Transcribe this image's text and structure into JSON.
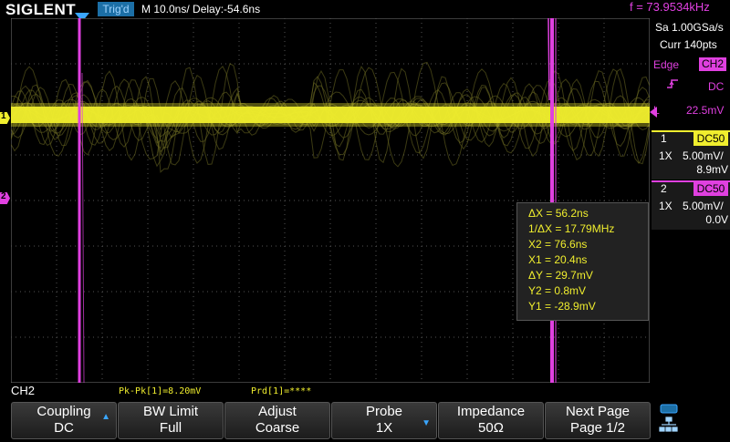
{
  "header": {
    "brand": "SIGLENT",
    "trigger_status": "Trig'd",
    "timebase": "M 10.0ns/  Delay:-54.6ns",
    "frequency": "f = 73.9534kHz"
  },
  "acquisition": {
    "sample_rate": "Sa 1.00GSa/s",
    "current_points": "Curr 140pts"
  },
  "trigger": {
    "type": "Edge",
    "source": "CH2",
    "coupling": "DC",
    "level_label": "L",
    "level": "22.5mV",
    "slope_icon": "rising-edge-icon"
  },
  "channels": [
    {
      "number": "1",
      "coupling_tag": "DC50",
      "probe": "1X",
      "scale": "5.00mV/",
      "offset": "8.9mV",
      "color": "#f0ee2e"
    },
    {
      "number": "2",
      "coupling_tag": "DC50",
      "probe": "1X",
      "scale": "5.00mV/",
      "offset": "0.0V",
      "color": "#e040e0"
    }
  ],
  "waveform_markers": {
    "ch1": "1",
    "ch2": "2"
  },
  "cursor_readout": [
    "ΔX = 56.2ns",
    "1/ΔX = 17.79MHz",
    "X2 = 76.6ns",
    "X1 = 20.4ns",
    "ΔY = 29.7mV",
    "Y2 = 0.8mV",
    "Y1 = -28.9mV"
  ],
  "status": {
    "menu_channel": "CH2",
    "pkpk": "Pk-Pk[1]=8.20mV",
    "prd": "Prd[1]=****"
  },
  "soft_menu": [
    {
      "line1": "Coupling",
      "line2": "DC",
      "arrow": "up"
    },
    {
      "line1": "BW Limit",
      "line2": "Full",
      "arrow": ""
    },
    {
      "line1": "Adjust",
      "line2": "Coarse",
      "arrow": ""
    },
    {
      "line1": "Probe",
      "line2": "1X",
      "arrow": "down"
    },
    {
      "line1": "Impedance",
      "line2": "50Ω",
      "arrow": ""
    },
    {
      "line1": "Next Page",
      "line2": "Page 1/2",
      "arrow": ""
    }
  ],
  "colors": {
    "ch1": "#f0ee2e",
    "ch2": "#e040e0",
    "grid": "#5a5a5a",
    "trigger_tag": "#1c6fa6"
  },
  "icons": {
    "status_top": "usb-icon",
    "status_bottom": "network-icon"
  }
}
